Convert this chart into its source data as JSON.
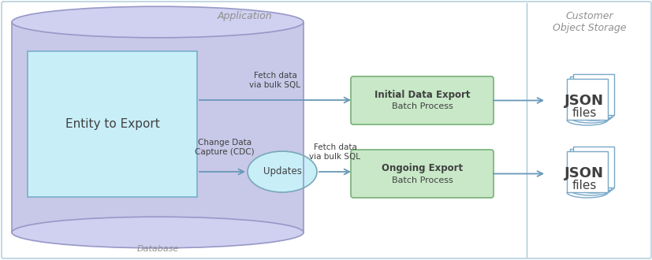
{
  "bg_color": "#ffffff",
  "border_color": "#a8c8d8",
  "app_label": "Application",
  "storage_label": "Customer\nObject Storage",
  "db_label": "Database",
  "db_body_color": "#c8c8e8",
  "db_cylinder_color": "#d0d0f0",
  "db_edge_color": "#9898c8",
  "entity_box_color": "#c8eef8",
  "entity_box_edge": "#78b0c8",
  "entity_label": "Entity to Export",
  "batch1_color": "#c8e8c8",
  "batch1_edge": "#78b078",
  "batch1_label_bold": "Initial Data Export",
  "batch1_label_light": "Batch Process",
  "batch2_color": "#c8e8c8",
  "batch2_edge": "#78b078",
  "batch2_label_bold": "Ongoing Export",
  "batch2_label_light": "Batch Process",
  "updates_fill": "#c8eef8",
  "updates_edge": "#78a8b8",
  "updates_label": "Updates",
  "arrow_color": "#6898b8",
  "arrow_label1": "Fetch data\nvia bulk SQL",
  "arrow_label2": "Change Data\nCapture (CDC)",
  "arrow_label3": "Fetch data\nvia bulk SQL",
  "json_fill": "#ffffff",
  "json_edge": "#78a8c8",
  "json_label_bold": "JSON",
  "json_label_light": "files",
  "label_color": "#909090",
  "text_color": "#404040",
  "divider_color": "#a8c8d8"
}
